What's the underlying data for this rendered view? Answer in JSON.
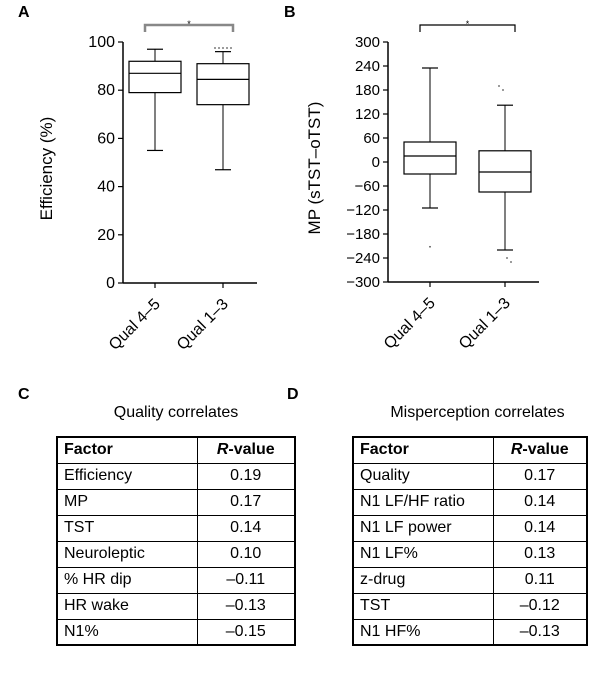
{
  "panel_labels": {
    "a": "A",
    "b": "B",
    "c": "C",
    "d": "D"
  },
  "chart_data": [
    {
      "type": "box",
      "panel": "A",
      "ylabel": "Efficiency (%)",
      "ylim": [
        0,
        100
      ],
      "yticks": [
        "0",
        "20",
        "40",
        "60",
        "80",
        "100"
      ],
      "categories": [
        "Qual 4–5",
        "Qual 1–3"
      ],
      "boxes": [
        {
          "min": 55,
          "q1": 79,
          "median": 87,
          "q3": 92,
          "max": 97,
          "outliers": []
        },
        {
          "min": 47,
          "q1": 74,
          "median": 84.5,
          "q3": 91,
          "max": 96,
          "outliers": [
            97.5,
            97.5,
            97.5,
            97.5,
            97.5
          ]
        }
      ],
      "significance_mark": "*"
    },
    {
      "type": "box",
      "panel": "B",
      "ylabel": "MP (sTST–oTST)",
      "ylim": [
        -300,
        300
      ],
      "yticks": [
        "300",
        "240",
        "180",
        "120",
        "60",
        "0",
        "−60",
        "−120",
        "−180",
        "−240",
        "−300"
      ],
      "categories": [
        "Qual 4–5",
        "Qual 1–3"
      ],
      "boxes": [
        {
          "min": -115,
          "q1": -30,
          "median": 15,
          "q3": 50,
          "max": 235,
          "outliers": [
            -212
          ]
        },
        {
          "min": -220,
          "q1": -75,
          "median": -25,
          "q3": 28,
          "max": 142,
          "outliers": [
            190,
            180,
            -240,
            -250
          ]
        }
      ],
      "significance_mark": "*"
    }
  ],
  "quality_table": {
    "title": "Quality correlates",
    "header_factor": "Factor",
    "header_r": "R",
    "header_r_suffix": "-value",
    "rows": [
      {
        "factor": "Efficiency",
        "value": "0.19"
      },
      {
        "factor": "MP",
        "value": "0.17"
      },
      {
        "factor": "TST",
        "value": "0.14"
      },
      {
        "factor": "Neuroleptic",
        "value": "0.10"
      },
      {
        "factor": "% HR dip",
        "value": "–0.11"
      },
      {
        "factor": "HR wake",
        "value": "–0.13"
      },
      {
        "factor": "N1%",
        "value": "–0.15"
      }
    ]
  },
  "misperception_table": {
    "title": "Misperception correlates",
    "header_factor": "Factor",
    "header_r": "R",
    "header_r_suffix": "-value",
    "rows": [
      {
        "factor": "Quality",
        "value": "0.17"
      },
      {
        "factor": "N1 LF/HF ratio",
        "value": "0.14"
      },
      {
        "factor": "N1 LF power",
        "value": "0.14"
      },
      {
        "factor": "N1 LF%",
        "value": "0.13"
      },
      {
        "factor": "z-drug",
        "value": "0.11"
      },
      {
        "factor": "TST",
        "value": "–0.12"
      },
      {
        "factor": "N1 HF%",
        "value": "–0.13"
      }
    ]
  }
}
